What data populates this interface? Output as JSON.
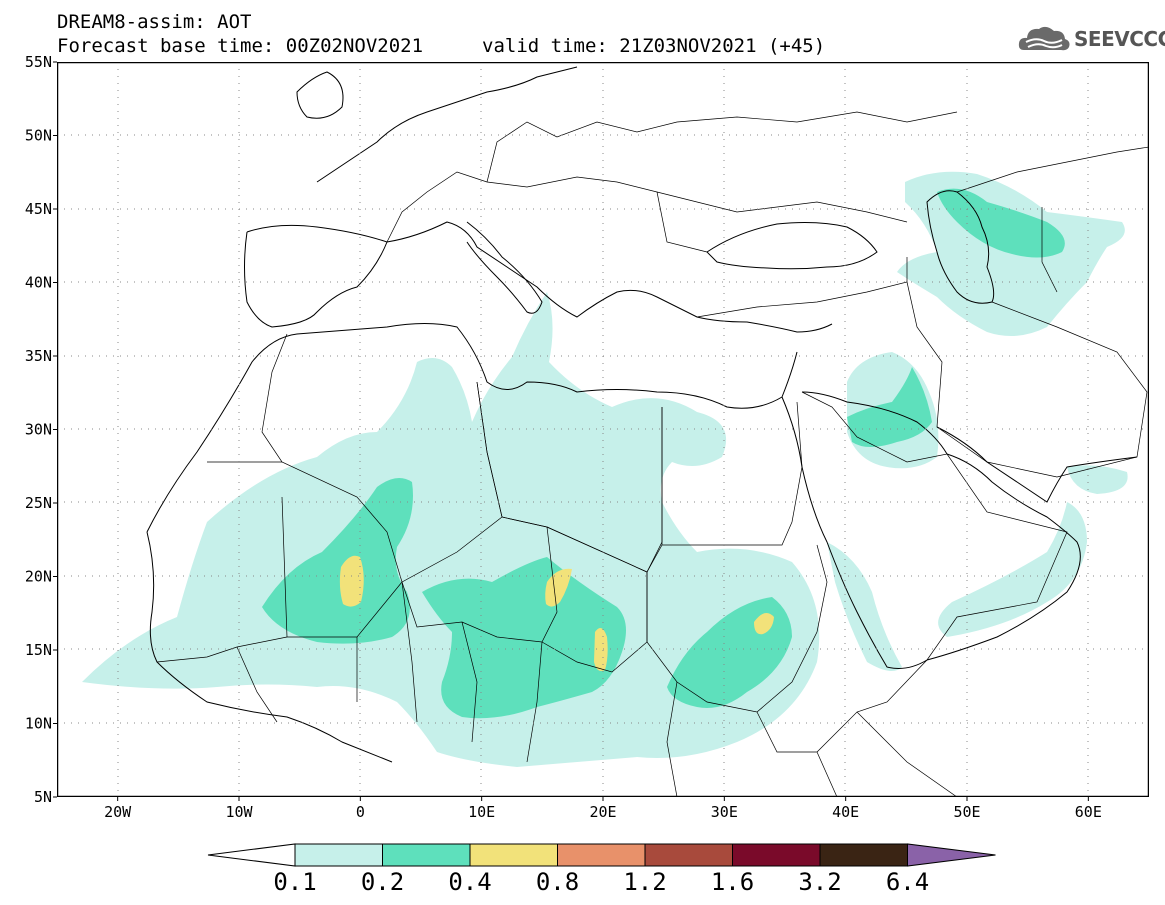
{
  "header": {
    "line1": "DREAM8-assim: AOT",
    "base_time": "Forecast base time: 00Z02NOV2021",
    "valid_time": "valid time: 21Z03NOV2021 (+45)"
  },
  "logo": {
    "text": "SEEVCCC",
    "icon": "cloud-icon"
  },
  "map": {
    "lat_labels": [
      "55N",
      "50N",
      "45N",
      "40N",
      "35N",
      "30N",
      "25N",
      "20N",
      "15N",
      "10N",
      "5N"
    ],
    "lon_labels": [
      "20W",
      "10W",
      "0",
      "10E",
      "20E",
      "30E",
      "40E",
      "50E",
      "60E"
    ],
    "extent": {
      "lon": [
        -25,
        65
      ],
      "lat": [
        5,
        55
      ]
    }
  },
  "colorbar": {
    "labels": [
      "0.1",
      "0.2",
      "0.4",
      "0.8",
      "1.2",
      "1.6",
      "3.2",
      "6.4"
    ],
    "colors": [
      "#ffffff",
      "#c6f0ea",
      "#5ee0bc",
      "#f2e27a",
      "#e8916a",
      "#a84a3c",
      "#7a0a2a",
      "#3a2414",
      "#8a62a8"
    ]
  }
}
